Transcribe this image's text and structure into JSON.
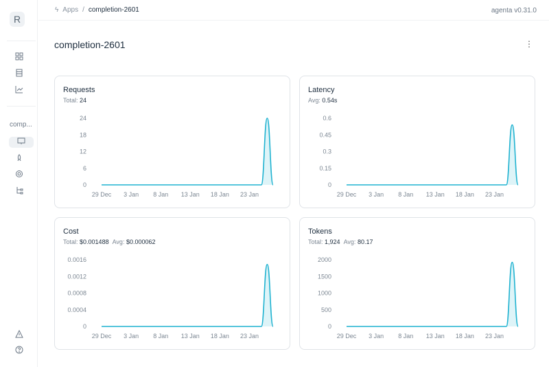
{
  "sidebar": {
    "logo": "R",
    "app_label": "comp...",
    "icons": [
      "grid-icon",
      "database-icon",
      "chart-icon",
      "monitor-icon",
      "rocket-icon",
      "target-icon",
      "tree-icon",
      "warning-icon",
      "help-icon"
    ]
  },
  "breadcrumb": {
    "root": "Apps",
    "separator": "/",
    "current": "completion-2601"
  },
  "version": "agenta v0.31.0",
  "page_title": "completion-2601",
  "accent": "#1fb2d0",
  "chart_data": [
    {
      "type": "area",
      "title": "Requests",
      "stats": [
        {
          "label": "Total:",
          "value": "24"
        }
      ],
      "yticks": [
        "0",
        "6",
        "12",
        "18",
        "24"
      ],
      "ylim": [
        0,
        24
      ],
      "xticks": [
        "29 Dec",
        "3 Jan",
        "8 Jan",
        "13 Jan",
        "18 Jan",
        "23 Jan"
      ],
      "x": [
        "29 Dec",
        "30 Dec",
        "31 Dec",
        "1 Jan",
        "2 Jan",
        "3 Jan",
        "4 Jan",
        "5 Jan",
        "6 Jan",
        "7 Jan",
        "8 Jan",
        "9 Jan",
        "10 Jan",
        "11 Jan",
        "12 Jan",
        "13 Jan",
        "14 Jan",
        "15 Jan",
        "16 Jan",
        "17 Jan",
        "18 Jan",
        "19 Jan",
        "20 Jan",
        "21 Jan",
        "22 Jan",
        "23 Jan",
        "24 Jan",
        "25 Jan",
        "26 Jan",
        "27 Jan"
      ],
      "values": [
        0,
        0,
        0,
        0,
        0,
        0,
        0,
        0,
        0,
        0,
        0,
        0,
        0,
        0,
        0,
        0,
        0,
        0,
        0,
        0,
        0,
        0,
        0,
        0,
        0,
        0,
        0,
        0,
        24,
        0
      ]
    },
    {
      "type": "area",
      "title": "Latency",
      "stats": [
        {
          "label": "Avg:",
          "value": "0.54s"
        }
      ],
      "yticks": [
        "0",
        "0.15",
        "0.3",
        "0.45",
        "0.6"
      ],
      "ylim": [
        0,
        0.6
      ],
      "xticks": [
        "29 Dec",
        "3 Jan",
        "8 Jan",
        "13 Jan",
        "18 Jan",
        "23 Jan"
      ],
      "values": [
        0,
        0,
        0,
        0,
        0,
        0,
        0,
        0,
        0,
        0,
        0,
        0,
        0,
        0,
        0,
        0,
        0,
        0,
        0,
        0,
        0,
        0,
        0,
        0,
        0,
        0,
        0,
        0,
        0.54,
        0
      ]
    },
    {
      "type": "area",
      "title": "Cost",
      "stats": [
        {
          "label": "Total:",
          "value": "$0.001488"
        },
        {
          "label": "Avg:",
          "value": "$0.000062"
        }
      ],
      "yticks": [
        "0",
        "0.0004",
        "0.0008",
        "0.0012",
        "0.0016"
      ],
      "ylim": [
        0,
        0.0016
      ],
      "xticks": [
        "29 Dec",
        "3 Jan",
        "8 Jan",
        "13 Jan",
        "18 Jan",
        "23 Jan"
      ],
      "values": [
        0,
        0,
        0,
        0,
        0,
        0,
        0,
        0,
        0,
        0,
        0,
        0,
        0,
        0,
        0,
        0,
        0,
        0,
        0,
        0,
        0,
        0,
        0,
        0,
        0,
        0,
        0,
        0,
        0.001488,
        0
      ]
    },
    {
      "type": "area",
      "title": "Tokens",
      "stats": [
        {
          "label": "Total:",
          "value": "1,924"
        },
        {
          "label": "Avg:",
          "value": "80.17"
        }
      ],
      "yticks": [
        "0",
        "500",
        "1000",
        "1500",
        "2000"
      ],
      "ylim": [
        0,
        2000
      ],
      "xticks": [
        "29 Dec",
        "3 Jan",
        "8 Jan",
        "13 Jan",
        "18 Jan",
        "23 Jan"
      ],
      "values": [
        0,
        0,
        0,
        0,
        0,
        0,
        0,
        0,
        0,
        0,
        0,
        0,
        0,
        0,
        0,
        0,
        0,
        0,
        0,
        0,
        0,
        0,
        0,
        0,
        0,
        0,
        0,
        0,
        1924,
        0
      ]
    }
  ]
}
